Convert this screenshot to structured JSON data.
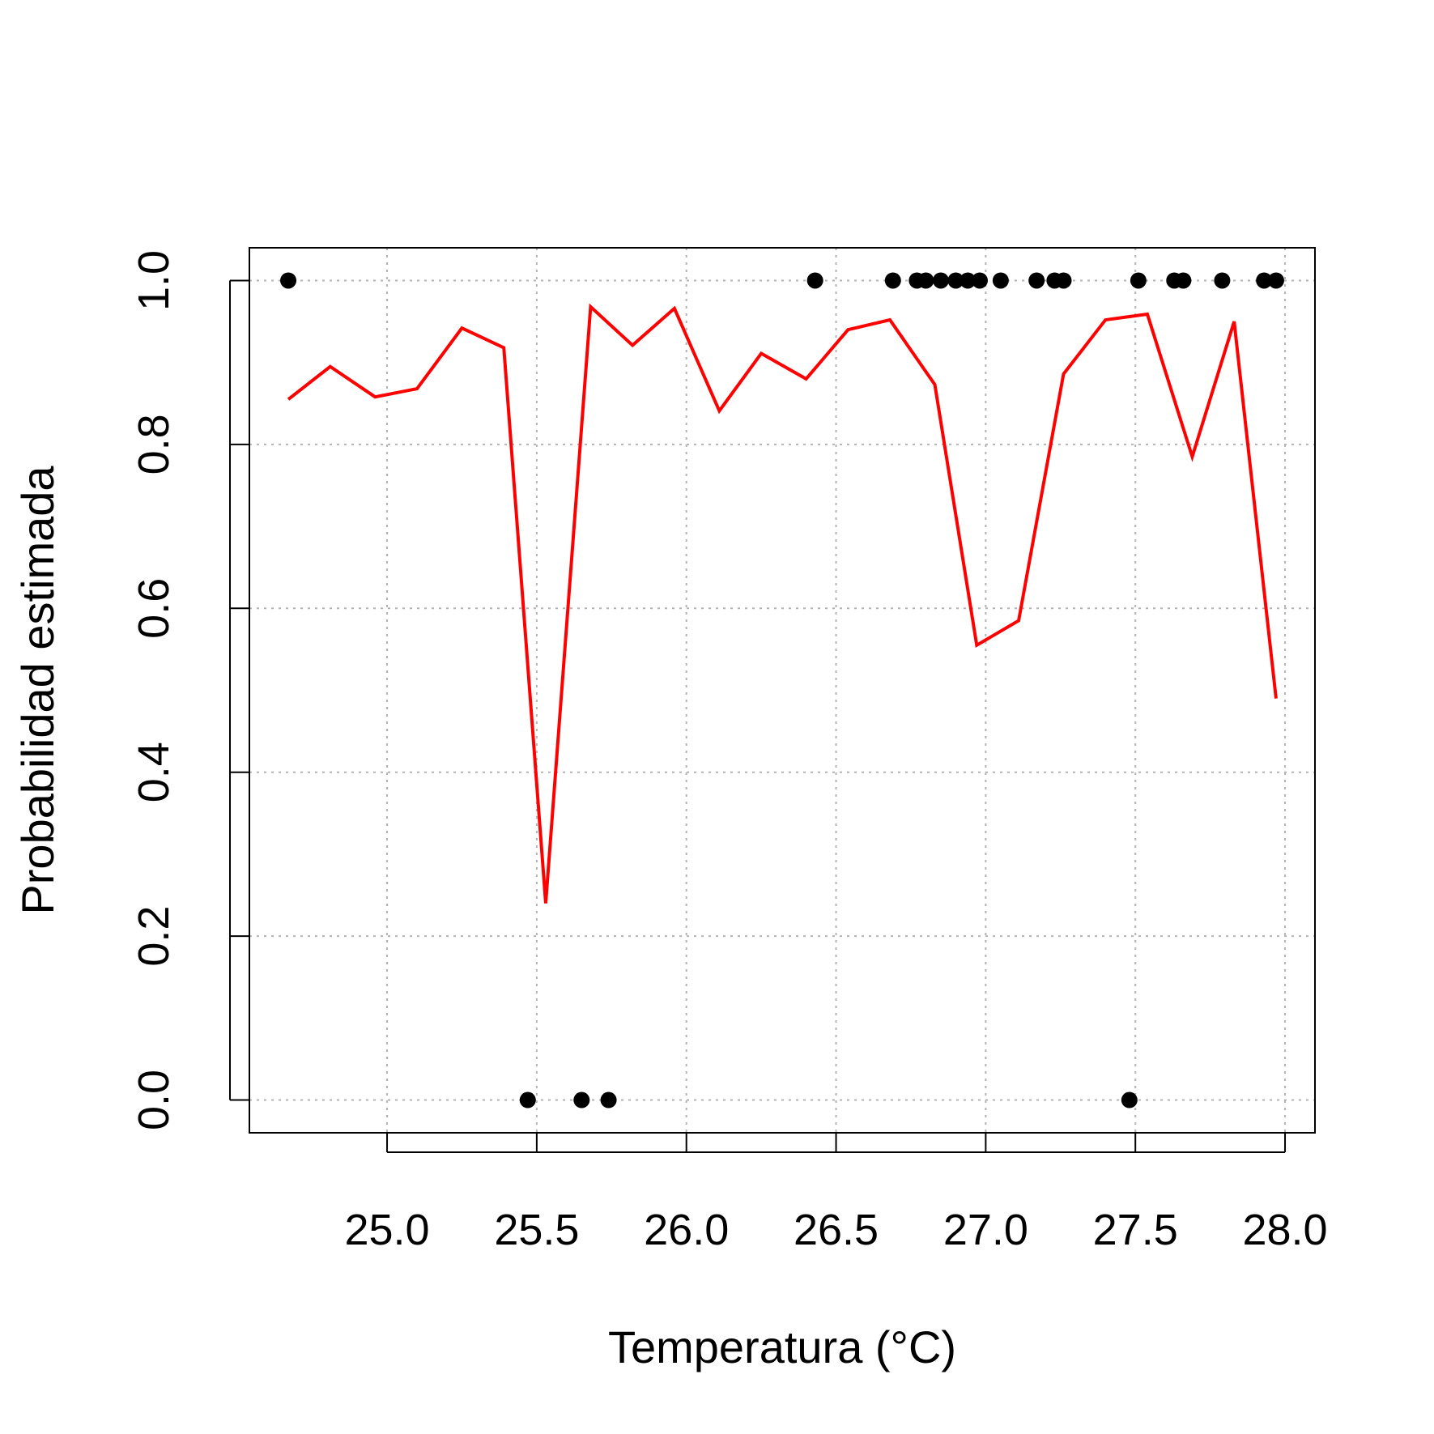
{
  "chart_data": {
    "type": "line",
    "title": "",
    "xlabel": "Temperatura (°C)",
    "ylabel": "Probabilidad estimada",
    "xlim": [
      24.54,
      28.1
    ],
    "ylim": [
      -0.04,
      1.04
    ],
    "x_ticks": [
      25.0,
      25.5,
      26.0,
      26.5,
      27.0,
      27.5,
      28.0
    ],
    "x_tick_labels": [
      "25.0",
      "25.5",
      "26.0",
      "26.5",
      "27.0",
      "27.5",
      "28.0"
    ],
    "y_ticks": [
      0.0,
      0.2,
      0.4,
      0.6,
      0.8,
      1.0
    ],
    "y_tick_labels": [
      "0.0",
      "0.2",
      "0.4",
      "0.6",
      "0.8",
      "1.0"
    ],
    "grid": true,
    "series": [
      {
        "type": "line",
        "color": "#ff0000",
        "x": [
          24.67,
          24.81,
          24.96,
          25.1,
          25.25,
          25.39,
          25.53,
          25.68,
          25.82,
          25.96,
          26.11,
          26.25,
          26.4,
          26.54,
          26.68,
          26.83,
          26.97,
          27.11,
          27.26,
          27.4,
          27.54,
          27.69,
          27.83,
          27.97
        ],
        "y": [
          0.855,
          0.895,
          0.858,
          0.868,
          0.942,
          0.918,
          0.24,
          0.968,
          0.921,
          0.966,
          0.841,
          0.911,
          0.88,
          0.94,
          0.952,
          0.873,
          0.555,
          0.585,
          0.886,
          0.952,
          0.959,
          0.785,
          0.95,
          0.49
        ]
      },
      {
        "type": "scatter",
        "color": "#000000",
        "x": [
          24.67,
          25.47,
          25.65,
          25.74,
          26.43,
          26.69,
          26.77,
          26.8,
          26.85,
          26.9,
          26.94,
          26.98,
          27.05,
          27.17,
          27.23,
          27.26,
          27.48,
          27.51,
          27.63,
          27.66,
          27.79,
          27.93,
          27.97
        ],
        "y": [
          1,
          0,
          0,
          0,
          1,
          1,
          1,
          1,
          1,
          1,
          1,
          1,
          1,
          1,
          1,
          1,
          0,
          1,
          1,
          1,
          1,
          1,
          1
        ]
      }
    ]
  }
}
